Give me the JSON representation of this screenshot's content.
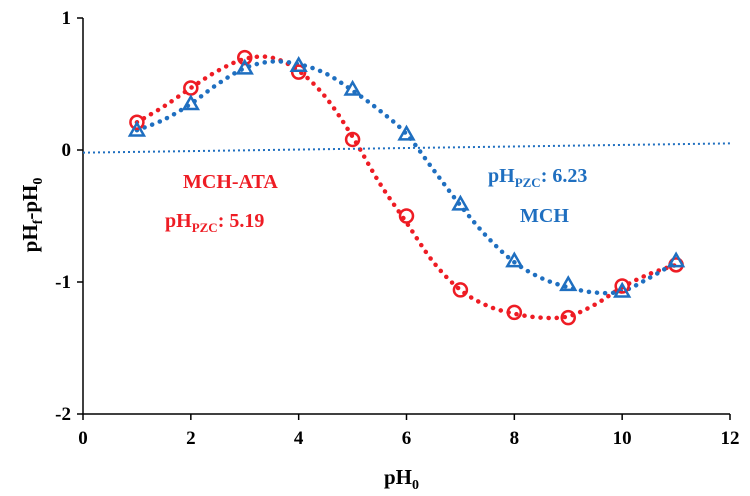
{
  "chart_data": {
    "type": "scatter",
    "xlabel": "pH0",
    "ylabel": "pHf-pH0",
    "xlim": [
      0,
      12
    ],
    "ylim": [
      -2,
      1
    ],
    "x_ticks": [
      0,
      2,
      4,
      6,
      8,
      10,
      12
    ],
    "y_ticks": [
      -2,
      -1,
      0,
      1
    ],
    "x_tick_labels": [
      "0",
      "2",
      "4",
      "6",
      "8",
      "10",
      "12"
    ],
    "y_tick_labels": [
      "-2",
      "-1",
      "0",
      "1"
    ],
    "series": [
      {
        "name": "MCH-ATA",
        "marker": "circle",
        "color": "#ee1c24",
        "x": [
          1,
          2,
          3,
          4,
          5,
          6,
          7,
          8,
          9,
          10,
          11
        ],
        "y": [
          0.21,
          0.47,
          0.7,
          0.59,
          0.08,
          -0.5,
          -1.06,
          -1.23,
          -1.27,
          -1.03,
          -0.87
        ],
        "trend": [
          [
            1,
            0.21
          ],
          [
            1.5,
            0.33
          ],
          [
            2,
            0.47
          ],
          [
            2.5,
            0.6
          ],
          [
            3,
            0.69
          ],
          [
            3.5,
            0.7
          ],
          [
            4,
            0.6
          ],
          [
            4.5,
            0.4
          ],
          [
            5,
            0.1
          ],
          [
            5.5,
            -0.25
          ],
          [
            6,
            -0.55
          ],
          [
            6.5,
            -0.85
          ],
          [
            7,
            -1.06
          ],
          [
            7.5,
            -1.18
          ],
          [
            8,
            -1.24
          ],
          [
            8.5,
            -1.27
          ],
          [
            9,
            -1.26
          ],
          [
            9.5,
            -1.17
          ],
          [
            10,
            -1.04
          ],
          [
            10.5,
            -0.94
          ],
          [
            11,
            -0.87
          ]
        ]
      },
      {
        "name": "MCH",
        "marker": "triangle",
        "color": "#1f6fc0",
        "x": [
          1,
          2,
          3,
          4,
          5,
          6,
          7,
          8,
          9,
          10,
          11
        ],
        "y": [
          0.15,
          0.35,
          0.62,
          0.64,
          0.46,
          0.12,
          -0.41,
          -0.84,
          -1.02,
          -1.07,
          -0.84
        ],
        "trend": [
          [
            1,
            0.15
          ],
          [
            1.5,
            0.23
          ],
          [
            2,
            0.35
          ],
          [
            2.5,
            0.5
          ],
          [
            3,
            0.62
          ],
          [
            3.5,
            0.67
          ],
          [
            4,
            0.65
          ],
          [
            4.5,
            0.58
          ],
          [
            5,
            0.45
          ],
          [
            5.5,
            0.3
          ],
          [
            6,
            0.12
          ],
          [
            6.5,
            -0.15
          ],
          [
            7,
            -0.42
          ],
          [
            7.5,
            -0.66
          ],
          [
            8,
            -0.85
          ],
          [
            8.5,
            -0.97
          ],
          [
            9,
            -1.04
          ],
          [
            9.5,
            -1.08
          ],
          [
            10,
            -1.07
          ],
          [
            10.5,
            -0.97
          ],
          [
            11,
            -0.85
          ]
        ]
      },
      {
        "name": "reference",
        "marker": "none",
        "color": "#1f6fc0",
        "x": [
          0,
          12
        ],
        "y": [
          -0.02,
          0.05
        ]
      }
    ],
    "annotations": {
      "mch_ata_name": "MCH-ATA",
      "mch_ata_pzc_prefix": "pH",
      "mch_ata_pzc_sub": "PZC",
      "mch_ata_pzc_value": ": 5.19",
      "mch_pzc_prefix": "pH",
      "mch_pzc_sub": "PZC",
      "mch_pzc_value": ": 6.23",
      "mch_name": "MCH"
    },
    "axis_labels": {
      "x_main": "pH",
      "x_sub": "0",
      "y_main1": "pH",
      "y_sub1": "f",
      "y_mid": "-pH",
      "y_sub2": "0"
    }
  }
}
